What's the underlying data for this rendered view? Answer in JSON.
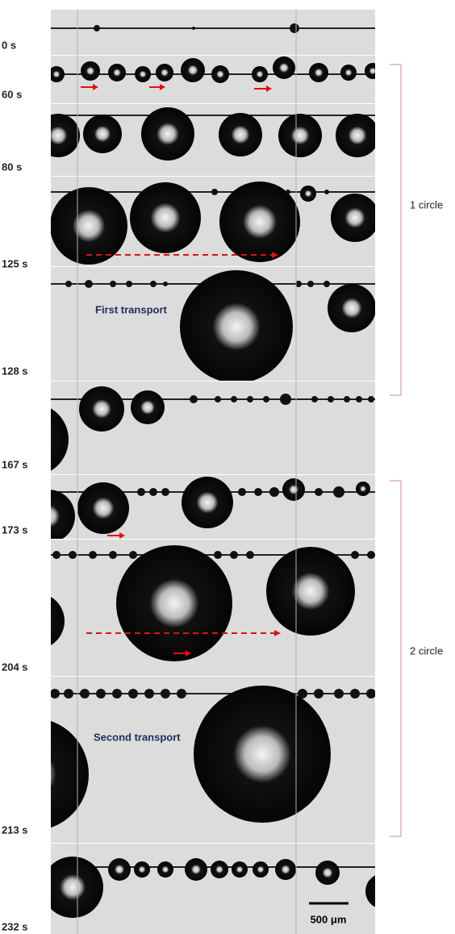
{
  "time_labels": [
    "0 s",
    "60 s",
    "80 s",
    "125 s",
    "128 s",
    "167 s",
    "173 s",
    "204 s",
    "213 s",
    "232 s"
  ],
  "brackets": [
    "1 circle",
    "2 circle"
  ],
  "annotations": [
    "First transport",
    "Second transport"
  ],
  "scale_bar": "500 μm"
}
